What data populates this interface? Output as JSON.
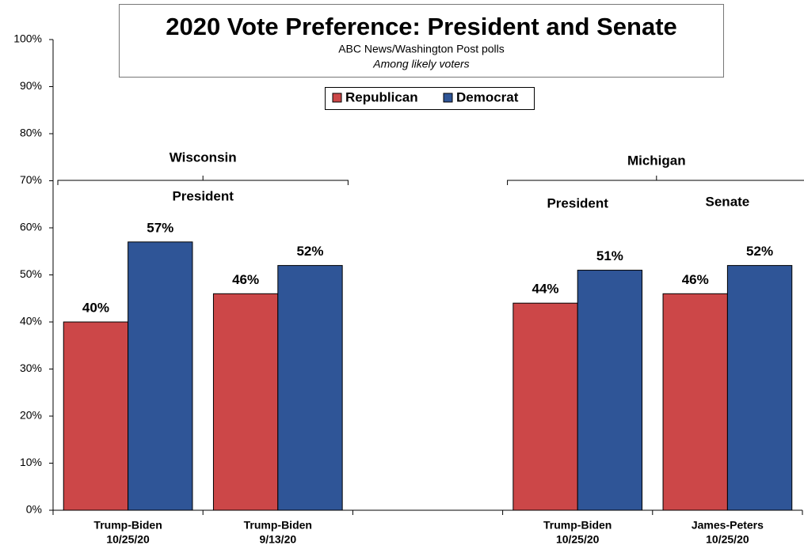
{
  "chart_data": {
    "type": "bar",
    "title": "2020 Vote Preference: President and Senate",
    "subtitle": "ABC News/Washington Post polls",
    "note": "Among likely voters",
    "categories": [
      "Trump-Biden",
      "Trump-Biden",
      null,
      "Trump-Biden",
      "James-Peters"
    ],
    "dates": [
      "10/25/20",
      "9/13/20",
      null,
      "10/25/20",
      "10/25/20"
    ],
    "series": [
      {
        "name": "Republican",
        "color": "#cc4748",
        "values": [
          40,
          46,
          null,
          44,
          46
        ],
        "value_labels": [
          "40%",
          "46%",
          null,
          "44%",
          "46%"
        ]
      },
      {
        "name": "Democrat",
        "color": "#2f5597",
        "values": [
          57,
          52,
          null,
          51,
          52
        ],
        "value_labels": [
          "57%",
          "52%",
          null,
          "51%",
          "52%"
        ]
      }
    ],
    "groups": [
      {
        "label": "Wisconsin",
        "sublabels": [
          "President"
        ]
      },
      {
        "label": "Michigan",
        "sublabels": [
          "President",
          "Senate"
        ]
      }
    ],
    "ylim": [
      0,
      100
    ],
    "yticks": [
      {
        "value": 0,
        "label": "0%"
      },
      {
        "value": 10,
        "label": "10%"
      },
      {
        "value": 20,
        "label": "20%"
      },
      {
        "value": 30,
        "label": "30%"
      },
      {
        "value": 40,
        "label": "40%"
      },
      {
        "value": 50,
        "label": "50%"
      },
      {
        "value": 60,
        "label": "60%"
      },
      {
        "value": 70,
        "label": "70%"
      },
      {
        "value": 80,
        "label": "80%"
      },
      {
        "value": 90,
        "label": "90%"
      },
      {
        "value": 100,
        "label": "100%"
      }
    ],
    "grid": false,
    "legend": "top"
  }
}
